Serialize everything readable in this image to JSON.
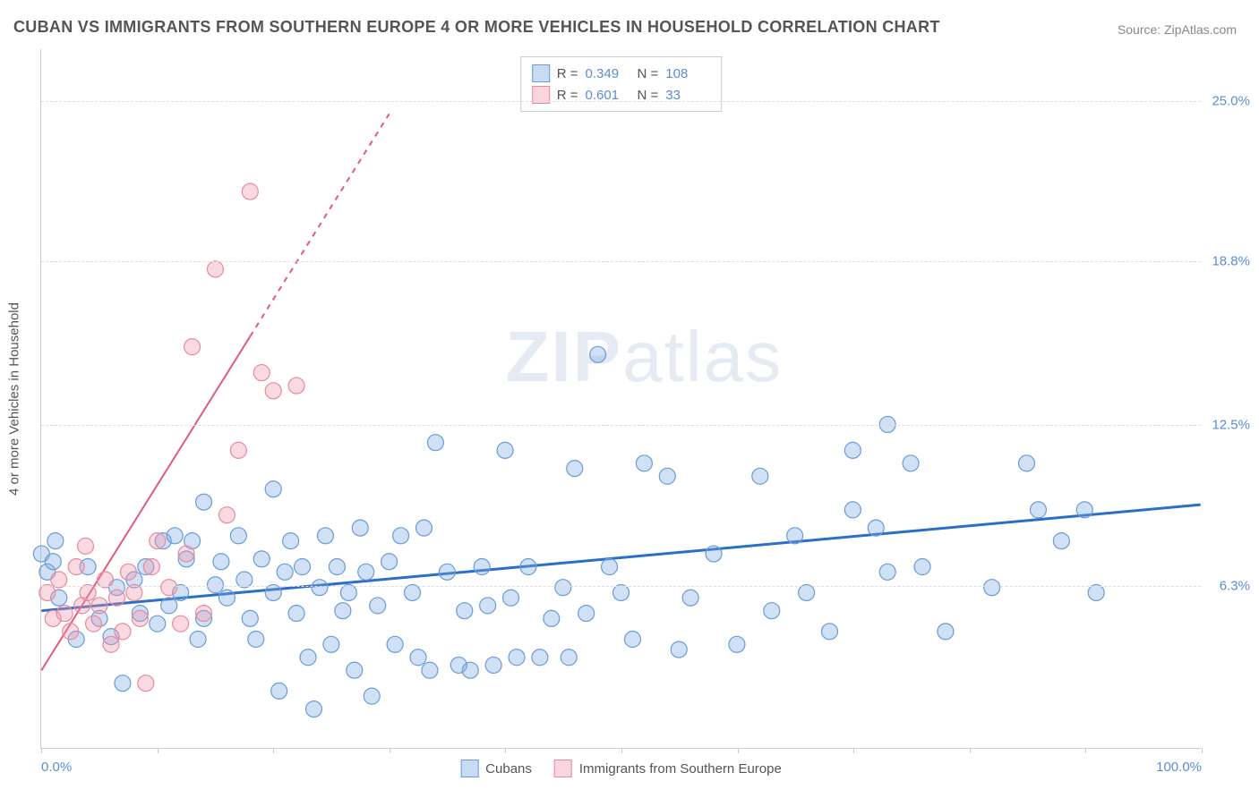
{
  "chart": {
    "type": "scatter",
    "title": "CUBAN VS IMMIGRANTS FROM SOUTHERN EUROPE 4 OR MORE VEHICLES IN HOUSEHOLD CORRELATION CHART",
    "source": "Source: ZipAtlas.com",
    "watermark": "ZIPatlas",
    "y_axis_label": "4 or more Vehicles in Household",
    "background_color": "#ffffff",
    "grid_color": "#dddddd",
    "axis_color": "#cccccc",
    "tick_label_color": "#5b8dd6",
    "xlim": [
      0,
      100
    ],
    "ylim": [
      0,
      27
    ],
    "x_ticks": [
      0,
      10,
      20,
      30,
      40,
      50,
      60,
      70,
      80,
      90,
      100
    ],
    "x_labels": {
      "0": "0.0%",
      "100": "100.0%"
    },
    "y_gridlines": [
      6.3,
      12.5,
      18.8,
      25.0
    ],
    "y_labels": [
      "6.3%",
      "12.5%",
      "18.8%",
      "25.0%"
    ],
    "series": [
      {
        "name": "Cubans",
        "fill_color": "rgba(120,165,225,0.35)",
        "stroke_color": "#6a9bd8",
        "marker_radius": 9,
        "marker_stroke_width": 1.2,
        "r_value": "0.349",
        "n_value": "108",
        "trend": {
          "x1": 0,
          "y1": 5.3,
          "x2": 100,
          "y2": 9.4,
          "color": "#2b6fc9",
          "width": 3,
          "dash_after_x": null
        },
        "points": [
          [
            0,
            7.5
          ],
          [
            0.5,
            6.8
          ],
          [
            1,
            7.2
          ],
          [
            1.2,
            8.0
          ],
          [
            1.5,
            5.8
          ],
          [
            3,
            4.2
          ],
          [
            4,
            7.0
          ],
          [
            5,
            5.0
          ],
          [
            6,
            4.3
          ],
          [
            6.5,
            6.2
          ],
          [
            7,
            2.5
          ],
          [
            8,
            6.5
          ],
          [
            8.5,
            5.2
          ],
          [
            9,
            7.0
          ],
          [
            10,
            4.8
          ],
          [
            10.5,
            8.0
          ],
          [
            11,
            5.5
          ],
          [
            11.5,
            8.2
          ],
          [
            12,
            6.0
          ],
          [
            12.5,
            7.3
          ],
          [
            13,
            8.0
          ],
          [
            13.5,
            4.2
          ],
          [
            14,
            5.0
          ],
          [
            14,
            9.5
          ],
          [
            15,
            6.3
          ],
          [
            15.5,
            7.2
          ],
          [
            16,
            5.8
          ],
          [
            17,
            8.2
          ],
          [
            17.5,
            6.5
          ],
          [
            18,
            5.0
          ],
          [
            18.5,
            4.2
          ],
          [
            19,
            7.3
          ],
          [
            20,
            10.0
          ],
          [
            20,
            6.0
          ],
          [
            20.5,
            2.2
          ],
          [
            21,
            6.8
          ],
          [
            21.5,
            8.0
          ],
          [
            22,
            5.2
          ],
          [
            22.5,
            7.0
          ],
          [
            23,
            3.5
          ],
          [
            23.5,
            1.5
          ],
          [
            24,
            6.2
          ],
          [
            24.5,
            8.2
          ],
          [
            25,
            4.0
          ],
          [
            25.5,
            7.0
          ],
          [
            26,
            5.3
          ],
          [
            26.5,
            6.0
          ],
          [
            27,
            3.0
          ],
          [
            27.5,
            8.5
          ],
          [
            28,
            6.8
          ],
          [
            28.5,
            2.0
          ],
          [
            29,
            5.5
          ],
          [
            30,
            7.2
          ],
          [
            30.5,
            4.0
          ],
          [
            31,
            8.2
          ],
          [
            32,
            6.0
          ],
          [
            32.5,
            3.5
          ],
          [
            33,
            8.5
          ],
          [
            33.5,
            3.0
          ],
          [
            34,
            11.8
          ],
          [
            35,
            6.8
          ],
          [
            36,
            3.2
          ],
          [
            36.5,
            5.3
          ],
          [
            37,
            3.0
          ],
          [
            38,
            7.0
          ],
          [
            38.5,
            5.5
          ],
          [
            39,
            3.2
          ],
          [
            40,
            11.5
          ],
          [
            40.5,
            5.8
          ],
          [
            41,
            3.5
          ],
          [
            42,
            7.0
          ],
          [
            43,
            3.5
          ],
          [
            44,
            5.0
          ],
          [
            45,
            6.2
          ],
          [
            45.5,
            3.5
          ],
          [
            46,
            10.8
          ],
          [
            47,
            5.2
          ],
          [
            48,
            15.2
          ],
          [
            49,
            7.0
          ],
          [
            50,
            6.0
          ],
          [
            51,
            4.2
          ],
          [
            52,
            11.0
          ],
          [
            54,
            10.5
          ],
          [
            55,
            3.8
          ],
          [
            56,
            5.8
          ],
          [
            58,
            7.5
          ],
          [
            60,
            4.0
          ],
          [
            62,
            10.5
          ],
          [
            63,
            5.3
          ],
          [
            65,
            8.2
          ],
          [
            66,
            6.0
          ],
          [
            68,
            4.5
          ],
          [
            70,
            11.5
          ],
          [
            70,
            9.2
          ],
          [
            72,
            8.5
          ],
          [
            73,
            12.5
          ],
          [
            73,
            6.8
          ],
          [
            75,
            11.0
          ],
          [
            76,
            7.0
          ],
          [
            78,
            4.5
          ],
          [
            82,
            6.2
          ],
          [
            85,
            11.0
          ],
          [
            86,
            9.2
          ],
          [
            88,
            8.0
          ],
          [
            90,
            9.2
          ],
          [
            91,
            6.0
          ]
        ]
      },
      {
        "name": "Immigrants from Southern Europe",
        "fill_color": "rgba(240,150,170,0.35)",
        "stroke_color": "#e889a0",
        "marker_radius": 9,
        "marker_stroke_width": 1.2,
        "r_value": "0.601",
        "n_value": "33",
        "trend": {
          "x1": 0,
          "y1": 3.0,
          "x2": 30,
          "y2": 24.5,
          "color": "#e25a7e",
          "width": 2,
          "dash_after_x": 18
        },
        "points": [
          [
            0.5,
            6.0
          ],
          [
            1,
            5.0
          ],
          [
            1.5,
            6.5
          ],
          [
            2,
            5.2
          ],
          [
            2.5,
            4.5
          ],
          [
            3,
            7.0
          ],
          [
            3.5,
            5.5
          ],
          [
            3.8,
            7.8
          ],
          [
            4,
            6.0
          ],
          [
            4.5,
            4.8
          ],
          [
            5,
            5.5
          ],
          [
            5.5,
            6.5
          ],
          [
            6,
            4.0
          ],
          [
            6.5,
            5.8
          ],
          [
            7,
            4.5
          ],
          [
            7.5,
            6.8
          ],
          [
            8,
            6.0
          ],
          [
            8.5,
            5.0
          ],
          [
            9,
            2.5
          ],
          [
            9.5,
            7.0
          ],
          [
            10,
            8.0
          ],
          [
            11,
            6.2
          ],
          [
            12,
            4.8
          ],
          [
            12.5,
            7.5
          ],
          [
            13,
            15.5
          ],
          [
            14,
            5.2
          ],
          [
            15,
            18.5
          ],
          [
            16,
            9.0
          ],
          [
            17,
            11.5
          ],
          [
            18,
            21.5
          ],
          [
            19,
            14.5
          ],
          [
            20,
            13.8
          ],
          [
            22,
            14.0
          ]
        ]
      }
    ],
    "legend_swatch": {
      "blue": {
        "fill": "rgba(120,165,225,0.4)",
        "stroke": "#6a9bd8"
      },
      "pink": {
        "fill": "rgba(240,150,170,0.4)",
        "stroke": "#e889a0"
      }
    }
  }
}
